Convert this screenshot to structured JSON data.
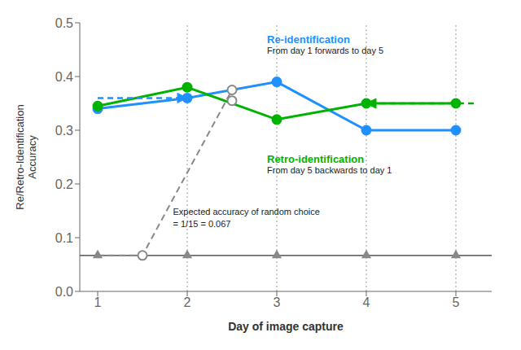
{
  "chart_data": {
    "type": "line",
    "xlabel": "Day of image capture",
    "ylabel": "Re/Retro-Identification\nAccuracy",
    "x": [
      1,
      2,
      3,
      4,
      5
    ],
    "xlim": [
      0.8,
      5.4
    ],
    "xticks": [
      1,
      2,
      3,
      4,
      5
    ],
    "ylim": [
      0,
      0.5
    ],
    "yticks": [
      {
        "value": 0,
        "label": "0.0"
      },
      0.1,
      0.2,
      0.3,
      0.4,
      0.5
    ],
    "grid": false,
    "baseline": 0.067,
    "vlines": [
      2,
      3,
      4,
      5
    ],
    "series": [
      {
        "color": "#888888",
        "line_style": "dashed",
        "marker": "none",
        "x": [
          1.0,
          1.5,
          2.5,
          3.0
        ],
        "values": [
          0.067,
          0.067,
          0.375,
          0.39
        ]
      },
      {
        "color": "#1e90ff",
        "line_style": "solid",
        "marker": "circle",
        "values": [
          0.34,
          0.36,
          0.39,
          0.3,
          0.3
        ]
      },
      {
        "color": "#00b300",
        "line_style": "solid",
        "marker": "circle",
        "values": [
          0.345,
          0.38,
          0.32,
          0.35,
          0.35
        ]
      },
      {
        "color": "#888888",
        "line_style": "none",
        "marker": "triangle",
        "values": [
          0.067,
          0.067,
          0.067,
          0.067,
          0.067
        ]
      },
      {
        "color": "#888888",
        "line_style": "none",
        "marker": "open_circle",
        "x": [
          1.5,
          2.5,
          2.5
        ],
        "values": [
          0.067,
          0.375,
          0.355
        ]
      }
    ],
    "arrows": [
      {
        "x": [
          1.0,
          2.0
        ],
        "y": 0.36,
        "color": "#1e90ff"
      },
      {
        "x": [
          5.2,
          4.0
        ],
        "y": 0.35,
        "color": "#00b300"
      }
    ],
    "annotations": [
      {
        "text": "Re-identification",
        "color": "#1e90ff"
      },
      {
        "text": "From day 1 forwards to day 5"
      },
      {
        "text": "Retro-identification",
        "color": "#00b300"
      },
      {
        "text": "From day 5 backwards to day 1"
      },
      {
        "text": "Expected accuracy of random choice"
      },
      {
        "text": "= 1/15 = 0.067"
      }
    ]
  }
}
